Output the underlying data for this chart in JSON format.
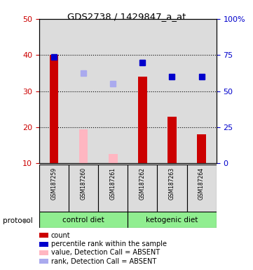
{
  "title": "GDS2738 / 1429847_a_at",
  "samples": [
    "GSM187259",
    "GSM187260",
    "GSM187261",
    "GSM187262",
    "GSM187263",
    "GSM187264"
  ],
  "bar_values": [
    40.0,
    null,
    null,
    34.0,
    23.0,
    18.0
  ],
  "bar_color_present": "#CC0000",
  "bar_values_absent": [
    null,
    19.5,
    12.5,
    null,
    null,
    null
  ],
  "bar_color_absent": "#FFB6C1",
  "rank_values_present": [
    39.5,
    null,
    null,
    38.0,
    34.0,
    34.0
  ],
  "rank_color_present": "#0000CC",
  "rank_values_absent": [
    null,
    35.0,
    32.0,
    null,
    null,
    null
  ],
  "rank_color_absent": "#AAAAEE",
  "ylim_left": [
    10,
    50
  ],
  "ylim_right": [
    0,
    100
  ],
  "yticks_left": [
    10,
    20,
    30,
    40,
    50
  ],
  "yticks_right": [
    0,
    25,
    50,
    75,
    100
  ],
  "ytick_labels_right": [
    "0",
    "25",
    "50",
    "75",
    "100%"
  ],
  "ylabel_left_color": "#CC0000",
  "ylabel_right_color": "#0000CC",
  "dotted_lines": [
    20,
    30,
    40
  ],
  "bar_width": 0.3,
  "marker_size": 6,
  "bg_color": "#DCDCDC",
  "group_color": "#90EE90",
  "group_spans": [
    [
      0,
      2,
      "control diet"
    ],
    [
      3,
      5,
      "ketogenic diet"
    ]
  ],
  "legend_items": [
    {
      "color": "#CC0000",
      "label": "count"
    },
    {
      "color": "#0000CC",
      "label": "percentile rank within the sample"
    },
    {
      "color": "#FFB6C1",
      "label": "value, Detection Call = ABSENT"
    },
    {
      "color": "#AAAAEE",
      "label": "rank, Detection Call = ABSENT"
    }
  ]
}
